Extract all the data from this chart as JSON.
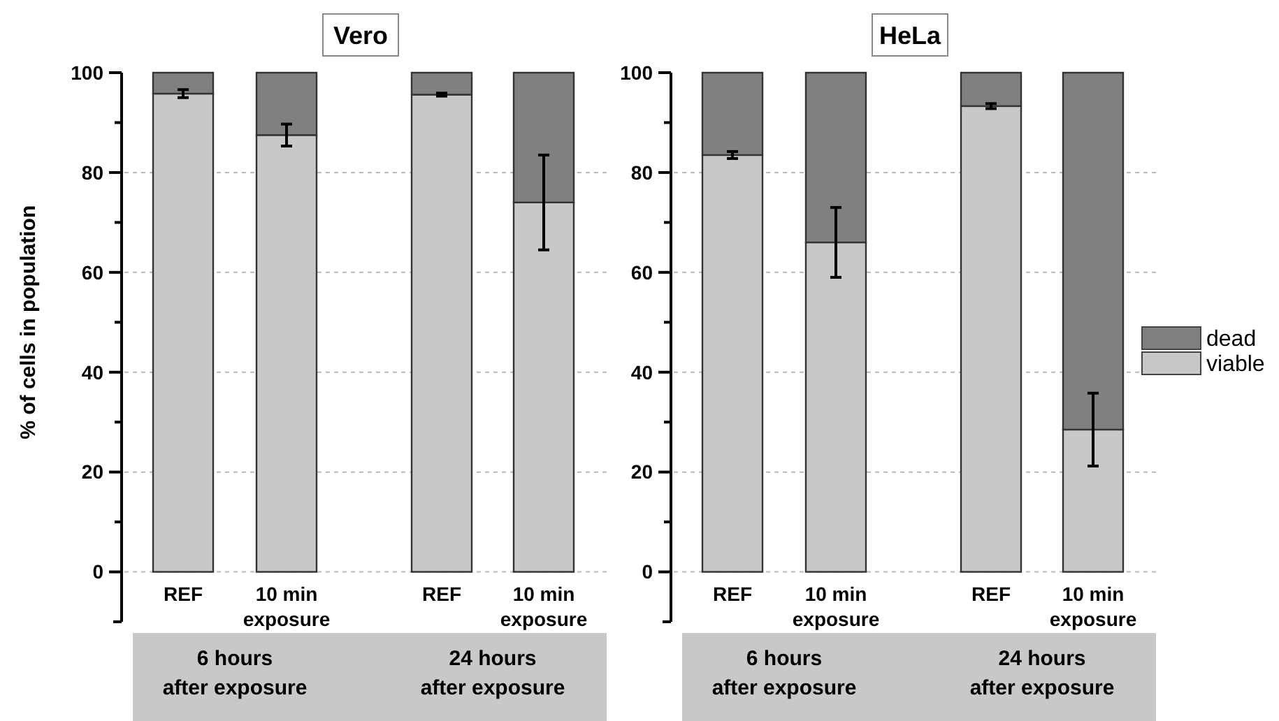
{
  "chart_data": [
    {
      "type": "bar",
      "title": "Vero",
      "ylabel": "% of cells in population",
      "categories": [
        "REF",
        "10 min exposure",
        "REF",
        "10 min exposure"
      ],
      "stacked": true,
      "series": [
        {
          "color": "#c8c8c8",
          "values": [
            95.8,
            87.5,
            95.6,
            74
          ],
          "errors": [
            0.8,
            2.2,
            0.3,
            9.5
          ]
        },
        {
          "color": "#808080",
          "values": [
            4.2,
            12.5,
            4.4,
            26
          ]
        }
      ],
      "ylim": [
        -10,
        100
      ],
      "yticks": [
        0,
        {
          "value": 10,
          "label": null
        },
        20,
        {
          "value": 30,
          "label": null
        },
        40,
        {
          "value": 50,
          "label": null
        },
        60,
        {
          "value": 70,
          "label": null
        },
        80,
        {
          "value": 90,
          "label": null
        },
        100
      ],
      "grid": "y",
      "legend": false,
      "annotations": [
        "6 hours after exposure",
        "24 hours after exposure"
      ]
    },
    {
      "type": "bar",
      "title": "HeLa",
      "categories": [
        "REF",
        "10 min exposure",
        "REF",
        "10 min exposure"
      ],
      "stacked": true,
      "series": [
        {
          "name": "viable",
          "color": "#c8c8c8",
          "values": [
            83.5,
            66,
            93.3,
            28.5
          ],
          "errors": [
            0.7,
            7,
            0.5,
            7.3
          ]
        },
        {
          "name": "dead",
          "color": "#808080",
          "values": [
            16.5,
            34,
            6.7,
            71.5
          ]
        }
      ],
      "ylim": [
        -10,
        100
      ],
      "yticks": [
        0,
        {
          "value": 10,
          "label": null
        },
        20,
        {
          "value": 30,
          "label": null
        },
        40,
        {
          "value": 50,
          "label": null
        },
        60,
        {
          "value": 70,
          "label": null
        },
        80,
        {
          "value": 90,
          "label": null
        },
        100
      ],
      "grid": "y",
      "legend": "right",
      "annotations": [
        "6 hours after exposure",
        "24 hours after exposure"
      ]
    }
  ]
}
